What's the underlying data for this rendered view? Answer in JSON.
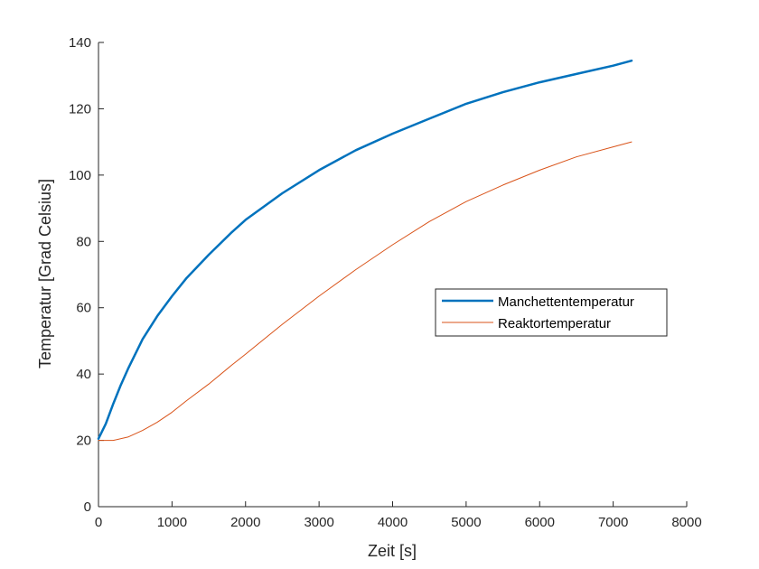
{
  "chart_data": {
    "type": "line",
    "xlabel": "Zeit [s]",
    "ylabel": "Temperatur [Grad Celsius]",
    "xlim": [
      0,
      8000
    ],
    "ylim": [
      0,
      140
    ],
    "xticks": [
      0,
      1000,
      2000,
      3000,
      4000,
      5000,
      6000,
      7000,
      8000
    ],
    "yticks": [
      0,
      20,
      40,
      60,
      80,
      100,
      120,
      140
    ],
    "grid": false,
    "legend_position": "center-right",
    "series": [
      {
        "name": "Manchettentemperatur",
        "color": "#0072BD",
        "line_width": 2.5,
        "x": [
          0,
          100,
          200,
          300,
          400,
          500,
          600,
          800,
          1000,
          1200,
          1500,
          1800,
          2000,
          2500,
          3000,
          3500,
          4000,
          4500,
          5000,
          5500,
          6000,
          6500,
          7000,
          7250
        ],
        "y": [
          20.5,
          25,
          31,
          36.5,
          41.5,
          46,
          50.5,
          57.5,
          63.5,
          69,
          76,
          82.5,
          86.5,
          94.5,
          101.5,
          107.5,
          112.5,
          117,
          121.5,
          125,
          128,
          130.5,
          133,
          134.5
        ]
      },
      {
        "name": "Reaktortemperatur",
        "color": "#D95319",
        "line_width": 1,
        "x": [
          0,
          200,
          400,
          600,
          800,
          1000,
          1200,
          1500,
          1800,
          2000,
          2500,
          3000,
          3500,
          4000,
          4500,
          5000,
          5500,
          6000,
          6500,
          7000,
          7250
        ],
        "y": [
          20,
          20,
          21,
          23,
          25.5,
          28.5,
          32,
          37,
          42.5,
          46,
          55,
          63.5,
          71.5,
          79,
          86,
          92,
          97,
          101.5,
          105.5,
          108.5,
          110
        ]
      }
    ]
  }
}
